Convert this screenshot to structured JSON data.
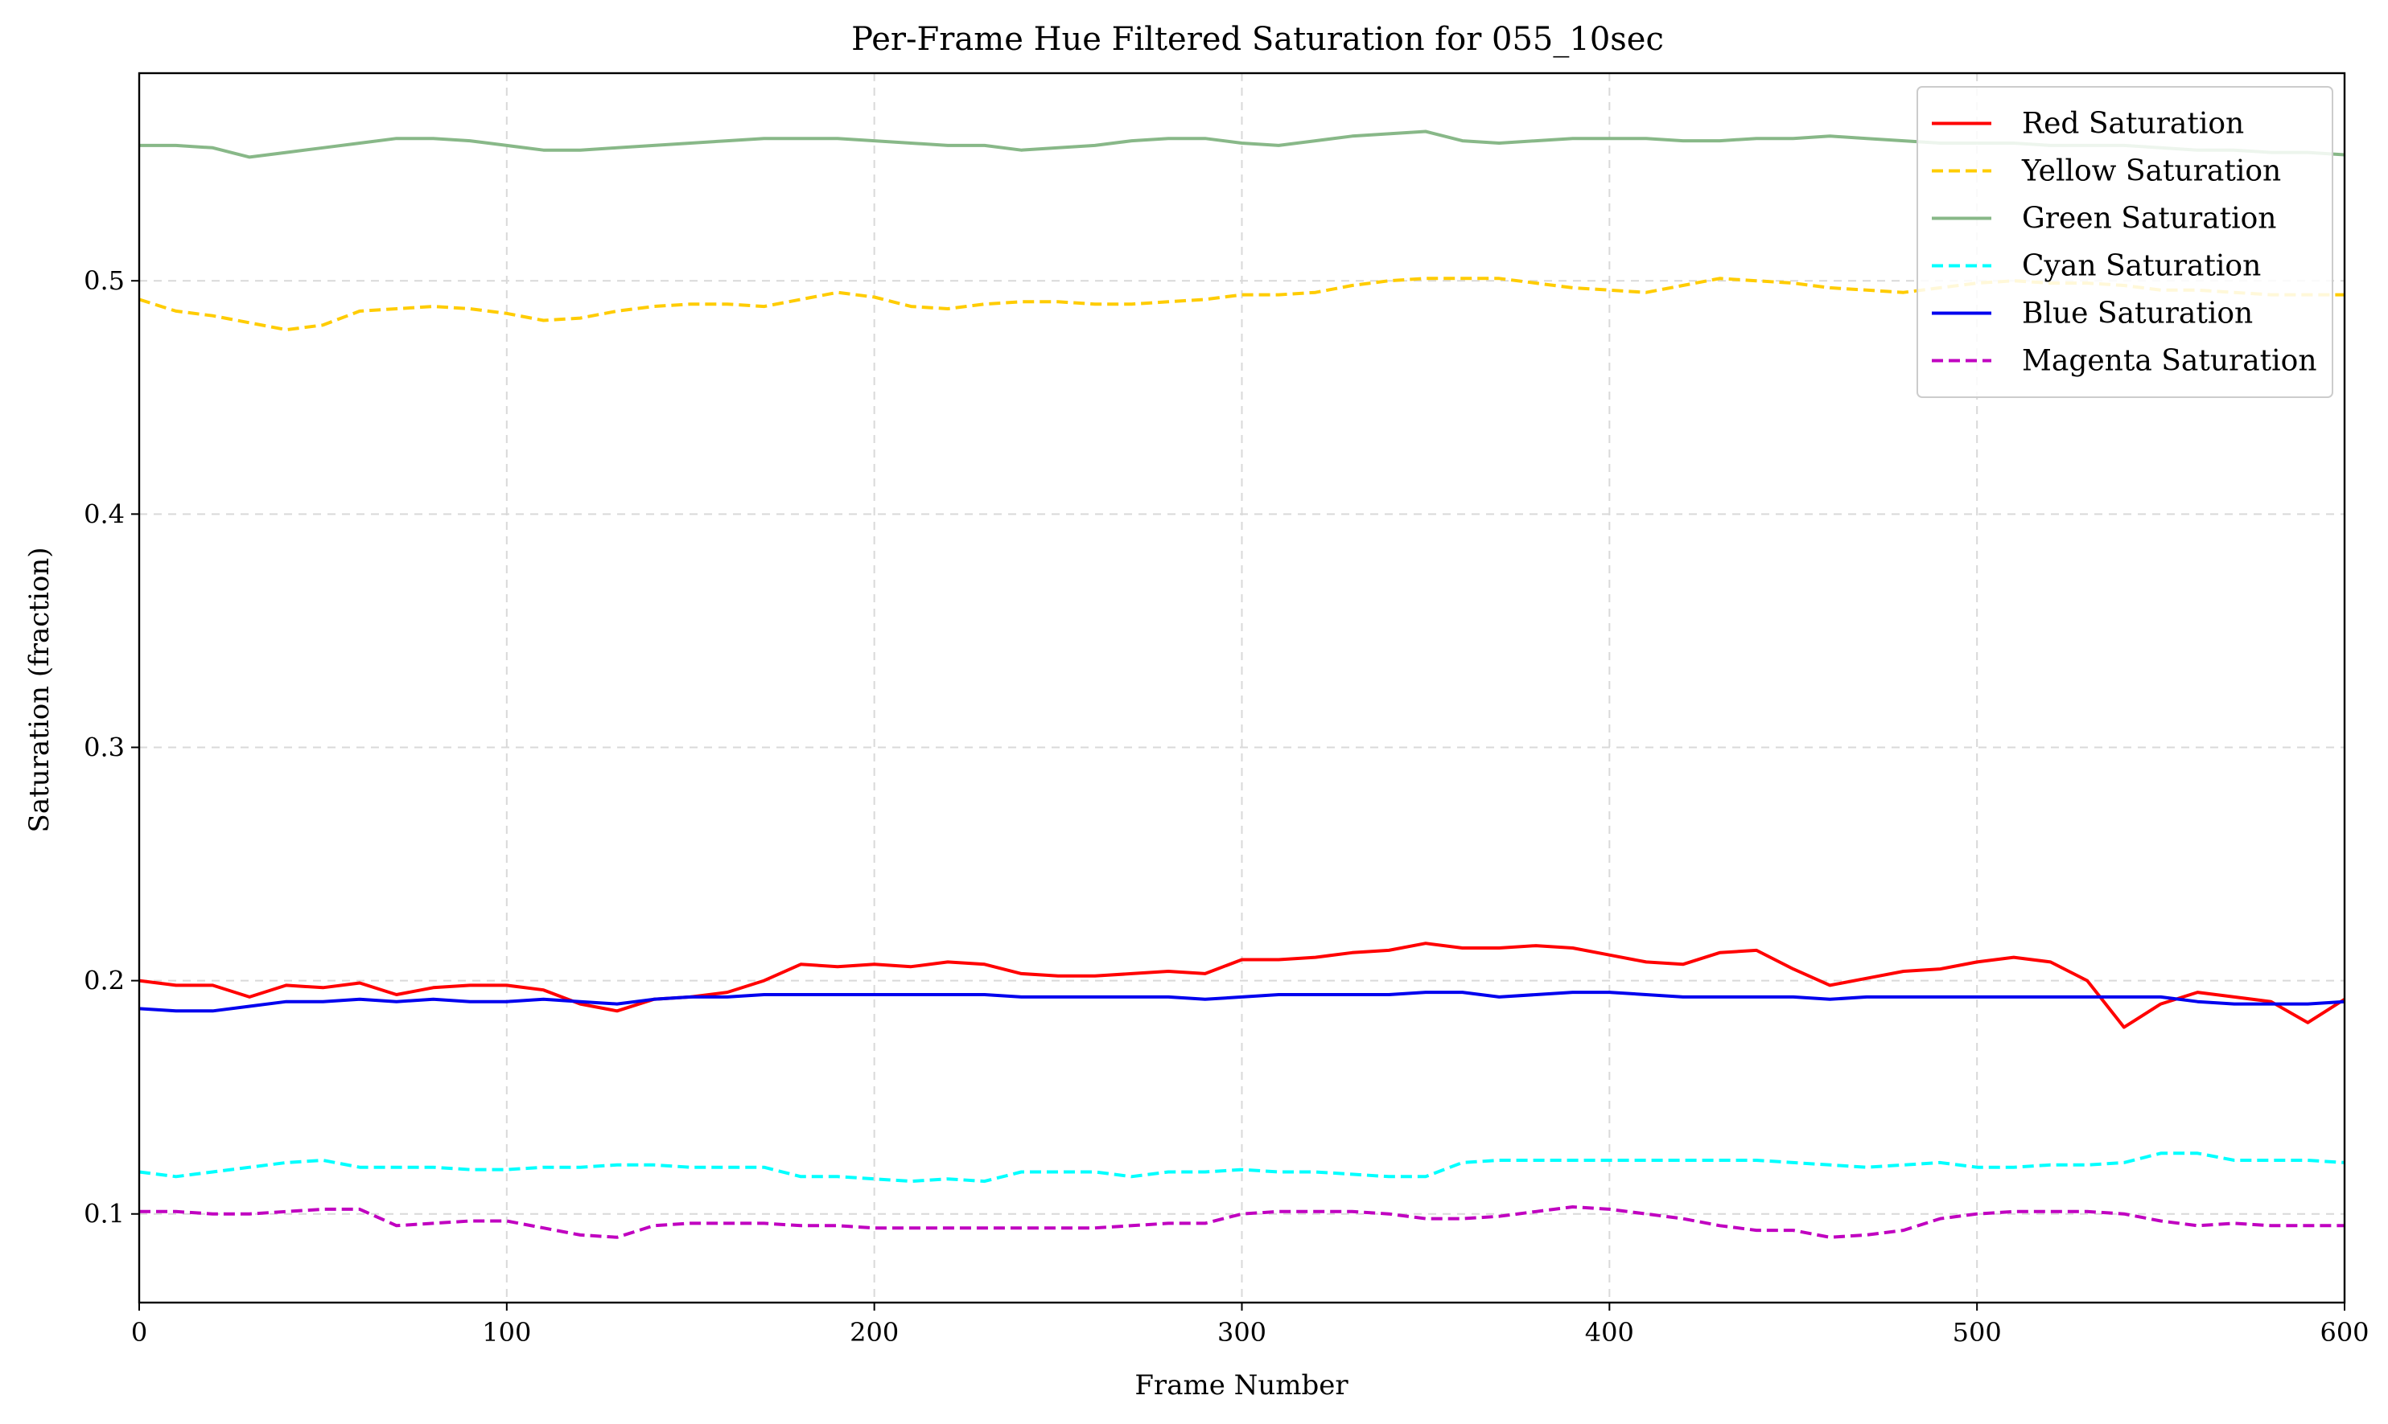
{
  "chart_data": {
    "type": "line",
    "title": "Per-Frame Hue Filtered Saturation for 055_10sec",
    "xlabel": "Frame Number",
    "ylabel": "Saturation (fraction)",
    "xlim": [
      0,
      600
    ],
    "ylim": [
      0.062,
      0.589
    ],
    "xticks": [
      "0",
      "100",
      "200",
      "300",
      "400",
      "500",
      "600"
    ],
    "yticks": [
      "0.1",
      "0.2",
      "0.3",
      "0.4",
      "0.5"
    ],
    "grid": true,
    "legend_position": "top-right",
    "x": [
      0,
      10,
      20,
      30,
      40,
      50,
      60,
      70,
      80,
      90,
      100,
      110,
      120,
      130,
      140,
      150,
      160,
      170,
      180,
      190,
      200,
      210,
      220,
      230,
      240,
      250,
      260,
      270,
      280,
      290,
      300,
      310,
      320,
      330,
      340,
      350,
      360,
      370,
      380,
      390,
      400,
      410,
      420,
      430,
      440,
      450,
      460,
      470,
      480,
      490,
      500,
      510,
      520,
      530,
      540,
      550,
      560,
      570,
      580,
      590,
      600
    ],
    "series": [
      {
        "name": "Red Saturation",
        "color": "#ff0000",
        "dash": "solid",
        "values": [
          0.2,
          0.198,
          0.198,
          0.193,
          0.198,
          0.197,
          0.199,
          0.194,
          0.197,
          0.198,
          0.198,
          0.196,
          0.19,
          0.187,
          0.192,
          0.193,
          0.195,
          0.2,
          0.207,
          0.206,
          0.207,
          0.206,
          0.208,
          0.207,
          0.203,
          0.202,
          0.202,
          0.203,
          0.204,
          0.203,
          0.209,
          0.209,
          0.21,
          0.212,
          0.213,
          0.216,
          0.214,
          0.214,
          0.215,
          0.214,
          0.211,
          0.208,
          0.207,
          0.212,
          0.213,
          0.205,
          0.198,
          0.201,
          0.204,
          0.205,
          0.208,
          0.21,
          0.208,
          0.2,
          0.18,
          0.19,
          0.195,
          0.193,
          0.191,
          0.182,
          0.192
        ]
      },
      {
        "name": "Yellow Saturation",
        "color": "#ffcc00",
        "dash": "dashed",
        "values": [
          0.492,
          0.487,
          0.485,
          0.482,
          0.479,
          0.481,
          0.487,
          0.488,
          0.489,
          0.488,
          0.486,
          0.483,
          0.484,
          0.487,
          0.489,
          0.49,
          0.49,
          0.489,
          0.492,
          0.495,
          0.493,
          0.489,
          0.488,
          0.49,
          0.491,
          0.491,
          0.49,
          0.49,
          0.491,
          0.492,
          0.494,
          0.494,
          0.495,
          0.498,
          0.5,
          0.501,
          0.501,
          0.501,
          0.499,
          0.497,
          0.496,
          0.495,
          0.498,
          0.501,
          0.5,
          0.499,
          0.497,
          0.496,
          0.495,
          0.497,
          0.499,
          0.5,
          0.499,
          0.499,
          0.498,
          0.496,
          0.496,
          0.495,
          0.494,
          0.494,
          0.494
        ]
      },
      {
        "name": "Green Saturation",
        "color": "#88b888",
        "dash": "solid",
        "values": [
          0.558,
          0.558,
          0.557,
          0.553,
          0.555,
          0.557,
          0.559,
          0.561,
          0.561,
          0.56,
          0.558,
          0.556,
          0.556,
          0.557,
          0.558,
          0.559,
          0.56,
          0.561,
          0.561,
          0.561,
          0.56,
          0.559,
          0.558,
          0.558,
          0.556,
          0.557,
          0.558,
          0.56,
          0.561,
          0.561,
          0.559,
          0.558,
          0.56,
          0.562,
          0.563,
          0.564,
          0.56,
          0.559,
          0.56,
          0.561,
          0.561,
          0.561,
          0.56,
          0.56,
          0.561,
          0.561,
          0.562,
          0.561,
          0.56,
          0.559,
          0.559,
          0.559,
          0.558,
          0.558,
          0.558,
          0.557,
          0.556,
          0.556,
          0.555,
          0.555,
          0.554
        ]
      },
      {
        "name": "Cyan Saturation",
        "color": "#00ffff",
        "dash": "dashed",
        "values": [
          0.118,
          0.116,
          0.118,
          0.12,
          0.122,
          0.123,
          0.12,
          0.12,
          0.12,
          0.119,
          0.119,
          0.12,
          0.12,
          0.121,
          0.121,
          0.12,
          0.12,
          0.12,
          0.116,
          0.116,
          0.115,
          0.114,
          0.115,
          0.114,
          0.118,
          0.118,
          0.118,
          0.116,
          0.118,
          0.118,
          0.119,
          0.118,
          0.118,
          0.117,
          0.116,
          0.116,
          0.122,
          0.123,
          0.123,
          0.123,
          0.123,
          0.123,
          0.123,
          0.123,
          0.123,
          0.122,
          0.121,
          0.12,
          0.121,
          0.122,
          0.12,
          0.12,
          0.121,
          0.121,
          0.122,
          0.126,
          0.126,
          0.123,
          0.123,
          0.123,
          0.122
        ]
      },
      {
        "name": "Blue Saturation",
        "color": "#0000ee",
        "dash": "solid",
        "values": [
          0.188,
          0.187,
          0.187,
          0.189,
          0.191,
          0.191,
          0.192,
          0.191,
          0.192,
          0.191,
          0.191,
          0.192,
          0.191,
          0.19,
          0.192,
          0.193,
          0.193,
          0.194,
          0.194,
          0.194,
          0.194,
          0.194,
          0.194,
          0.194,
          0.193,
          0.193,
          0.193,
          0.193,
          0.193,
          0.192,
          0.193,
          0.194,
          0.194,
          0.194,
          0.194,
          0.195,
          0.195,
          0.193,
          0.194,
          0.195,
          0.195,
          0.194,
          0.193,
          0.193,
          0.193,
          0.193,
          0.192,
          0.193,
          0.193,
          0.193,
          0.193,
          0.193,
          0.193,
          0.193,
          0.193,
          0.193,
          0.191,
          0.19,
          0.19,
          0.19,
          0.191
        ]
      },
      {
        "name": "Magenta Saturation",
        "color": "#c000c0",
        "dash": "dashed",
        "values": [
          0.101,
          0.101,
          0.1,
          0.1,
          0.101,
          0.102,
          0.102,
          0.095,
          0.096,
          0.097,
          0.097,
          0.094,
          0.091,
          0.09,
          0.095,
          0.096,
          0.096,
          0.096,
          0.095,
          0.095,
          0.094,
          0.094,
          0.094,
          0.094,
          0.094,
          0.094,
          0.094,
          0.095,
          0.096,
          0.096,
          0.1,
          0.101,
          0.101,
          0.101,
          0.1,
          0.098,
          0.098,
          0.099,
          0.101,
          0.103,
          0.102,
          0.1,
          0.098,
          0.095,
          0.093,
          0.093,
          0.09,
          0.091,
          0.093,
          0.098,
          0.1,
          0.101,
          0.101,
          0.101,
          0.1,
          0.097,
          0.095,
          0.096,
          0.095,
          0.095,
          0.095
        ]
      }
    ]
  }
}
